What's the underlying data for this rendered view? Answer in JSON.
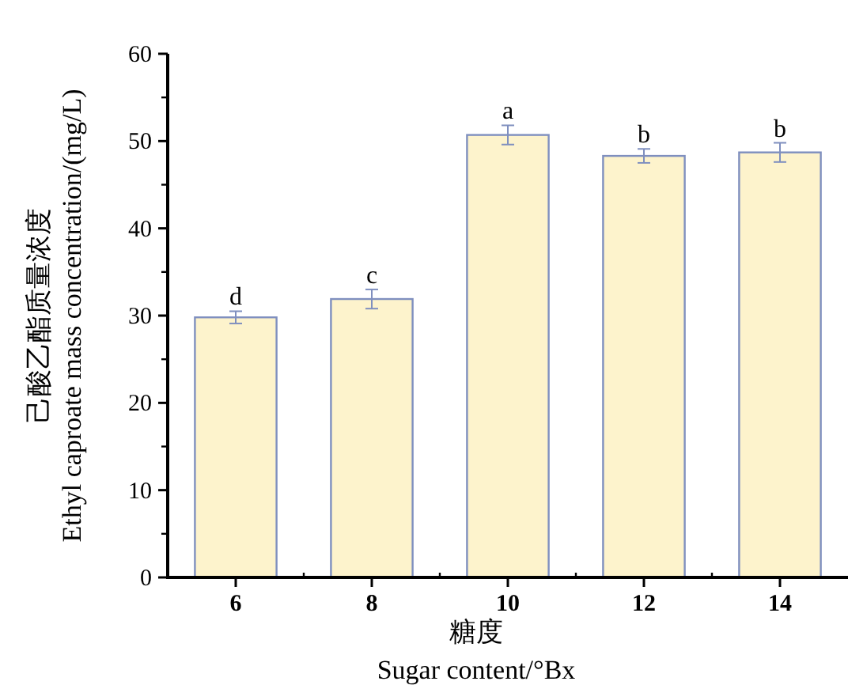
{
  "chart_data": {
    "type": "bar",
    "xlabel": "糖度\nSugar content/°Bx",
    "ylabel": "己酸乙酯质量浓度\nEthyl caproate mass concentration/(mg/L)",
    "categories": [
      "6",
      "8",
      "10",
      "12",
      "14"
    ],
    "values": [
      29.8,
      31.9,
      50.7,
      48.3,
      48.7
    ],
    "errors": [
      0.7,
      1.1,
      1.1,
      0.8,
      1.1
    ],
    "color": "#fdf3cc",
    "ylim": [
      0,
      60
    ],
    "yticks": [
      0,
      10,
      20,
      30,
      40,
      50,
      60
    ],
    "annotations": [
      {
        "text": "d",
        "x": "6",
        "y": 30.5
      },
      {
        "text": "c",
        "x": "8",
        "y": 33.0
      },
      {
        "text": "a",
        "x": "10",
        "y": 51.8
      },
      {
        "text": "b",
        "x": "12",
        "y": 49.1
      },
      {
        "text": "b",
        "x": "14",
        "y": 49.8
      }
    ]
  }
}
